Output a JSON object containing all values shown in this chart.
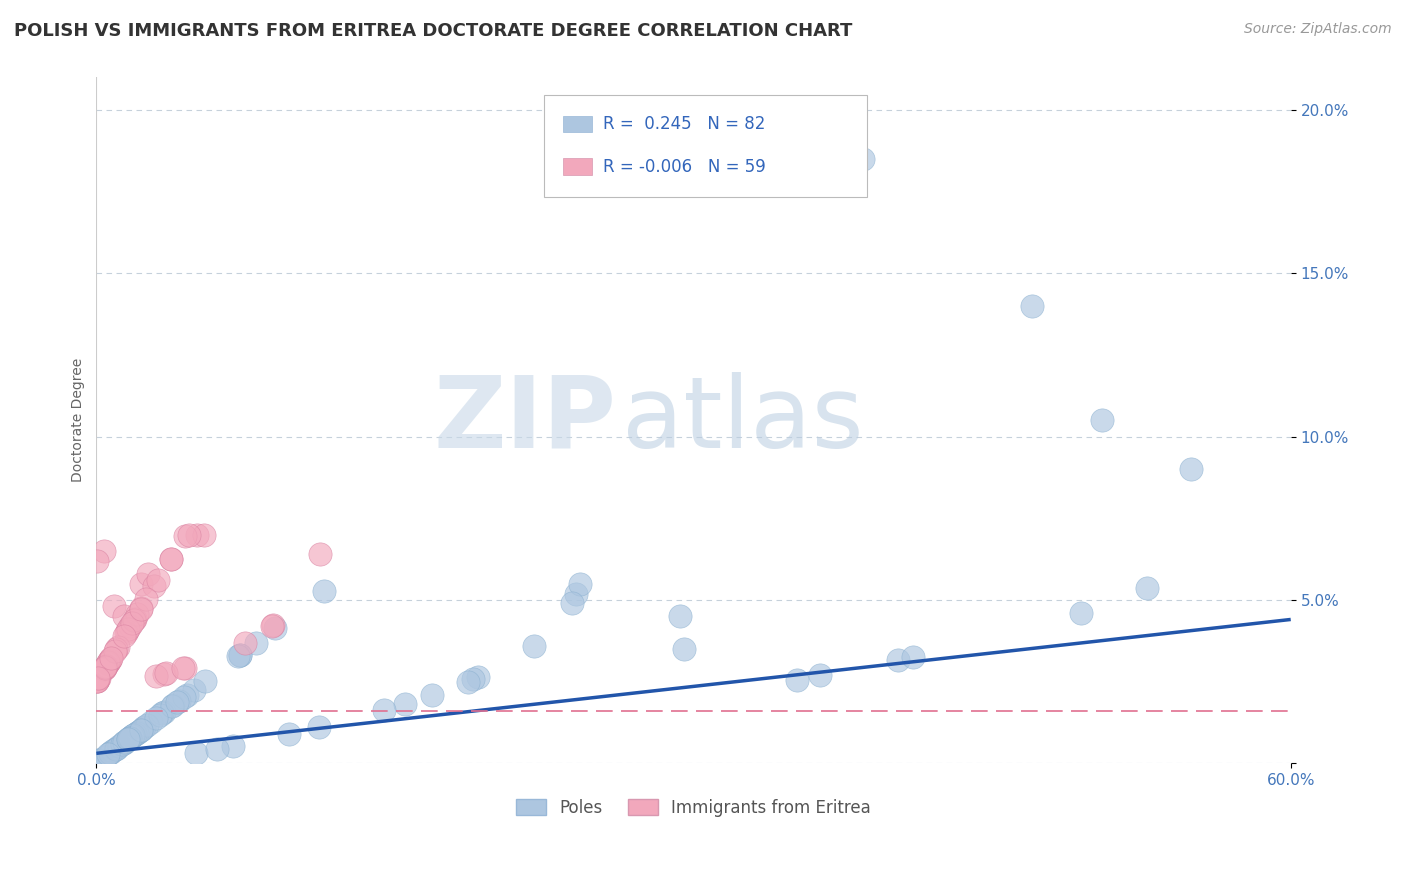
{
  "title": "POLISH VS IMMIGRANTS FROM ERITREA DOCTORATE DEGREE CORRELATION CHART",
  "source": "Source: ZipAtlas.com",
  "ylabel": "Doctorate Degree",
  "poles_color": "#adc6e0",
  "eritrea_color": "#f2a8bc",
  "trend_blue": "#2255aa",
  "trend_pink": "#e07090",
  "background": "#ffffff",
  "grid_color": "#c0ccd8",
  "xmin": 0.0,
  "xmax": 60.0,
  "ymin": 0.0,
  "ymax": 21.0,
  "yticks": [
    0.0,
    5.0,
    10.0,
    15.0,
    20.0
  ],
  "ytick_labels": [
    "",
    "5.0%",
    "10.0%",
    "15.0%",
    "20.0%"
  ],
  "title_fontsize": 13,
  "axis_label_fontsize": 10,
  "tick_fontsize": 11,
  "legend_fontsize": 12,
  "source_fontsize": 10,
  "watermark_zip": "ZIP",
  "watermark_atlas": "atlas",
  "trend_blue_start_y": 0.3,
  "trend_blue_end_y": 4.4,
  "trend_pink_y": 1.6
}
